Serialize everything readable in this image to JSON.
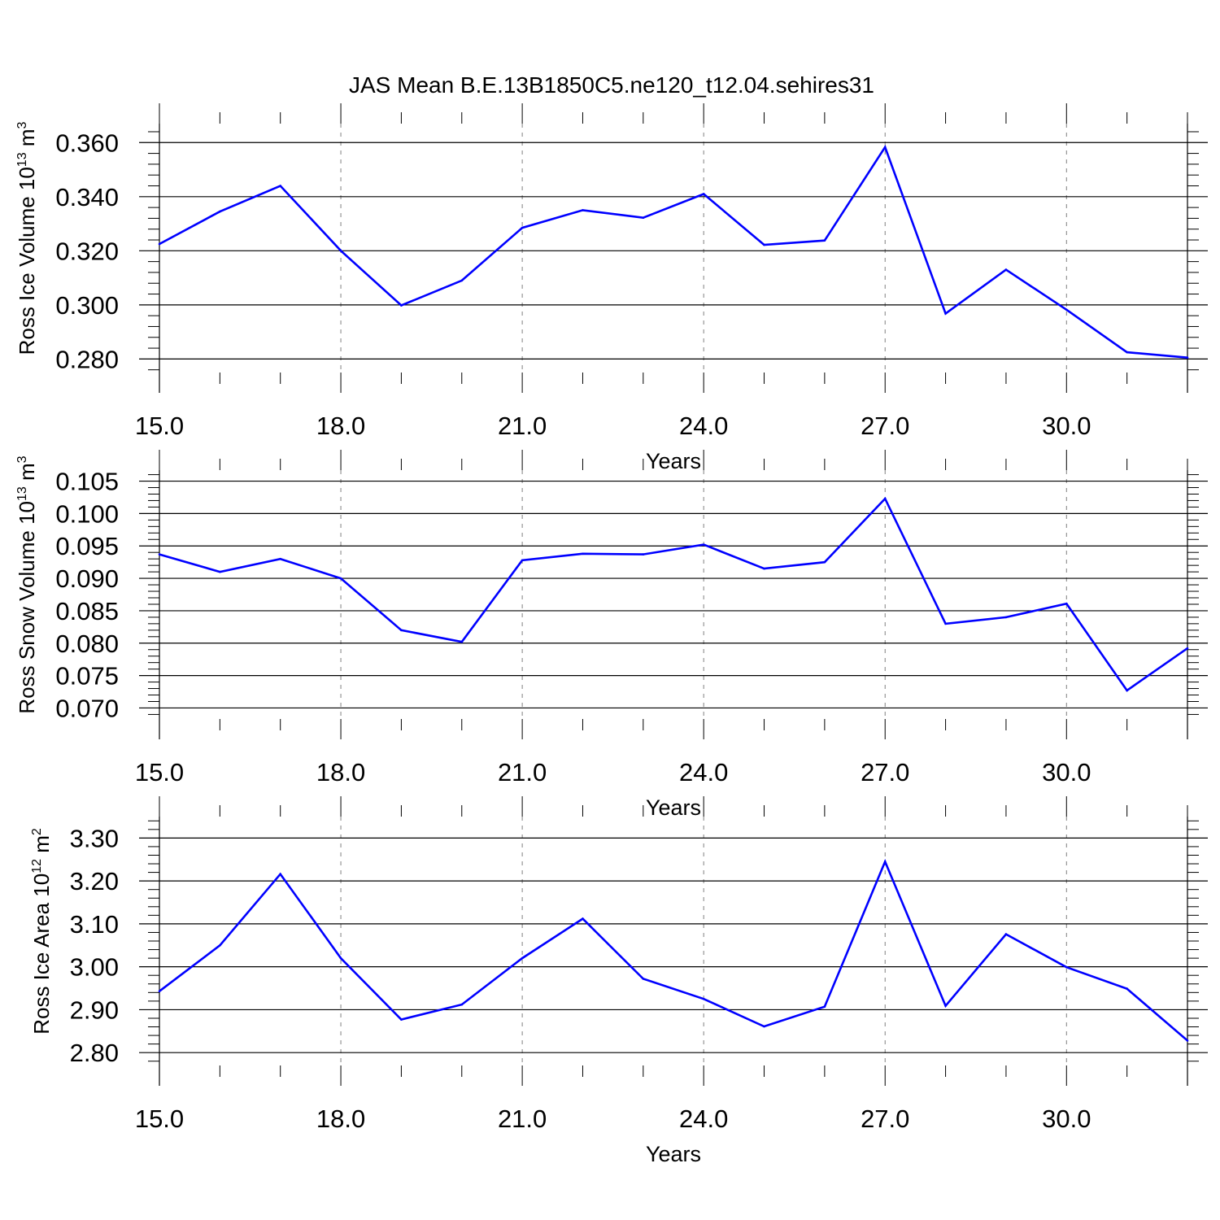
{
  "figure": {
    "title": "JAS Mean B.E.13B1850C5.ne120_t12.04.sehires31"
  },
  "style": {
    "line_color": "#0000ff",
    "axis_color": "#000000",
    "grid_color": "#808080"
  },
  "chart_data": [
    {
      "type": "line",
      "title": "",
      "xlabel": "Years",
      "ylabel": "Ross Ice Volume 10",
      "ylabel_exp": "13",
      "ylabel_unit": " m",
      "ylabel_unit_exp": "3",
      "xlim": [
        15,
        32
      ],
      "ylim": [
        0.275,
        0.367
      ],
      "x_ticks": [
        15,
        18,
        21,
        24,
        27,
        30
      ],
      "x_tick_labels": [
        "15.0",
        "18.0",
        "21.0",
        "24.0",
        "27.0",
        "30.0"
      ],
      "y_ticks": [
        0.28,
        0.3,
        0.32,
        0.34,
        0.36
      ],
      "y_tick_labels": [
        "0.280",
        "0.300",
        "0.320",
        "0.340",
        "0.360"
      ],
      "y_minor_step": 0.004,
      "grid": "vertical dashed at major x ticks",
      "x": [
        15,
        16,
        17,
        18,
        19,
        20,
        21,
        22,
        23,
        24,
        25,
        26,
        27,
        28,
        29,
        30,
        31,
        32
      ],
      "values": [
        0.3225,
        0.3345,
        0.344,
        0.32,
        0.2998,
        0.309,
        0.3285,
        0.335,
        0.3322,
        0.341,
        0.3222,
        0.3238,
        0.3583,
        0.2968,
        0.313,
        0.2982,
        0.2825,
        0.2805
      ]
    },
    {
      "type": "line",
      "title": "",
      "xlabel": "Years",
      "ylabel": "Ross Snow Volume 10",
      "ylabel_exp": "13",
      "ylabel_unit": " m",
      "ylabel_unit_exp": "3",
      "xlim": [
        15,
        32
      ],
      "ylim": [
        0.0683,
        0.1067
      ],
      "x_ticks": [
        15,
        18,
        21,
        24,
        27,
        30
      ],
      "x_tick_labels": [
        "15.0",
        "18.0",
        "21.0",
        "24.0",
        "27.0",
        "30.0"
      ],
      "y_ticks": [
        0.07,
        0.075,
        0.08,
        0.085,
        0.09,
        0.095,
        0.1,
        0.105
      ],
      "y_tick_labels": [
        "0.070",
        "0.075",
        "0.080",
        "0.085",
        "0.090",
        "0.095",
        "0.100",
        "0.105"
      ],
      "y_minor_step": 0.001,
      "grid": "vertical dashed at major x ticks",
      "x": [
        15,
        16,
        17,
        18,
        19,
        20,
        21,
        22,
        23,
        24,
        25,
        26,
        27,
        28,
        29,
        30,
        31,
        32
      ],
      "values": [
        0.0937,
        0.091,
        0.093,
        0.09,
        0.082,
        0.0802,
        0.0928,
        0.0938,
        0.0937,
        0.0952,
        0.0915,
        0.0925,
        0.1023,
        0.083,
        0.084,
        0.0861,
        0.0727,
        0.0792
      ]
    },
    {
      "type": "line",
      "title": "",
      "xlabel": "Years",
      "ylabel": "Ross Ice Area 10",
      "ylabel_exp": "12",
      "ylabel_unit": " m",
      "ylabel_unit_exp": "2",
      "xlim": [
        15,
        32
      ],
      "ylim": [
        2.77,
        3.35
      ],
      "x_ticks": [
        15,
        18,
        21,
        24,
        27,
        30
      ],
      "x_tick_labels": [
        "15.0",
        "18.0",
        "21.0",
        "24.0",
        "27.0",
        "30.0"
      ],
      "y_ticks": [
        2.8,
        2.9,
        3.0,
        3.1,
        3.2,
        3.3
      ],
      "y_tick_labels": [
        "2.80",
        "2.90",
        "3.00",
        "3.10",
        "3.20",
        "3.30"
      ],
      "y_minor_step": 0.02,
      "grid": "vertical dashed at major x ticks",
      "x": [
        15,
        16,
        17,
        18,
        19,
        20,
        21,
        22,
        23,
        24,
        25,
        26,
        27,
        28,
        29,
        30,
        31,
        32
      ],
      "values": [
        2.943,
        3.05,
        3.216,
        3.02,
        2.877,
        2.912,
        3.02,
        3.112,
        2.972,
        2.925,
        2.861,
        2.907,
        3.245,
        2.909,
        3.076,
        2.999,
        2.949,
        2.828
      ]
    }
  ]
}
